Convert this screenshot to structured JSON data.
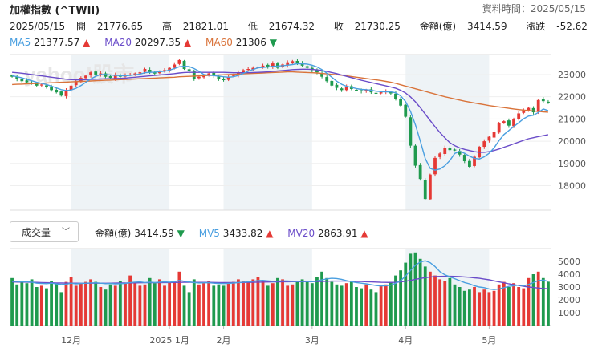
{
  "header": {
    "title": "加權指數 (^TWII)",
    "data_time_label": "資料時間：2025/05/15",
    "date": "2025/05/15",
    "open_label": "開",
    "open": "21776.65",
    "high_label": "高",
    "high": "21821.01",
    "low_label": "低",
    "low": "21674.32",
    "close_label": "收",
    "close": "21730.25",
    "amount_label": "金額(億)",
    "amount": "3414.59",
    "change_label": "漲跌",
    "change": "-52.62"
  },
  "ma": [
    {
      "label": "MA5",
      "value": "21377.57",
      "arrow": "▲",
      "color": "#4a9fe0",
      "dir": "up"
    },
    {
      "label": "MA20",
      "value": "20297.35",
      "arrow": "▲",
      "color": "#6a4cc9",
      "dir": "up"
    },
    {
      "label": "MA60",
      "value": "21306",
      "arrow": "▼",
      "color": "#d9733a",
      "dir": "down"
    }
  ],
  "volume_panel": {
    "select_label": "成交量",
    "amount_label": "金額(億)",
    "amount_value": "3414.59",
    "amount_arrow": "▼",
    "mv5_label": "MV5",
    "mv5_value": "3433.82",
    "mv5_arrow": "▲",
    "mv20_label": "MV20",
    "mv20_value": "2863.91",
    "mv20_arrow": "▲"
  },
  "watermark": "yahoo!股市",
  "colors": {
    "up": "#e53935",
    "down": "#1f9a4e",
    "ma5": "#4a9fe0",
    "ma20": "#6a4cc9",
    "ma60": "#d9733a",
    "band": "#eef3f6"
  },
  "chart_data": [
    {
      "type": "candlestick",
      "title": "加權指數 (^TWII)",
      "y_ticks": [
        18000,
        19000,
        20000,
        21000,
        22000,
        23000
      ],
      "ylim": [
        16900,
        23900
      ],
      "x_tick_labels": [
        {
          "label": "12月",
          "index": 12
        },
        {
          "label": "2025 1月",
          "index": 32
        },
        {
          "label": "2月",
          "index": 43
        },
        {
          "label": "3月",
          "index": 61
        },
        {
          "label": "4月",
          "index": 80
        },
        {
          "label": "5月",
          "index": 97
        }
      ],
      "close": [
        22900,
        22800,
        22700,
        22650,
        22600,
        22500,
        22550,
        22450,
        22300,
        22200,
        22050,
        22300,
        22500,
        22700,
        22850,
        22950,
        23100,
        23000,
        23050,
        22900,
        22850,
        23000,
        22900,
        22950,
        23000,
        23050,
        23100,
        23250,
        23100,
        23050,
        23150,
        23200,
        23300,
        23450,
        23650,
        23250,
        23150,
        22800,
        22900,
        22950,
        23050,
        22950,
        22800,
        22750,
        22900,
        23000,
        23100,
        23200,
        23250,
        23300,
        23350,
        23400,
        23350,
        23500,
        23300,
        23450,
        23550,
        23600,
        23500,
        23400,
        23300,
        23200,
        23100,
        22900,
        22700,
        22500,
        22400,
        22300,
        22450,
        22350,
        22300,
        22250,
        22300,
        22200,
        22150,
        22200,
        22250,
        22150,
        21900,
        21600,
        21100,
        19800,
        18900,
        18300,
        17400,
        18500,
        19250,
        19450,
        19700,
        19600,
        19600,
        19400,
        19100,
        18850,
        19300,
        19750,
        20000,
        20200,
        20400,
        20800,
        20900,
        20700,
        21000,
        21250,
        21400,
        21500,
        21300,
        21850,
        21800,
        21730
      ],
      "volume": [
        3700,
        3200,
        3400,
        3300,
        3600,
        3000,
        3100,
        2900,
        3500,
        3300,
        2600,
        3400,
        3800,
        3100,
        3300,
        3400,
        3600,
        3400,
        3000,
        2800,
        3200,
        3100,
        3500,
        3300,
        3900,
        3400,
        3100,
        3200,
        3700,
        3300,
        3600,
        3100,
        3400,
        3400,
        4200,
        3100,
        2600,
        3600,
        3200,
        3300,
        3500,
        3100,
        3200,
        3100,
        3300,
        3400,
        3600,
        3500,
        3400,
        3600,
        3800,
        3500,
        3100,
        3300,
        3700,
        3600,
        3100,
        3200,
        3500,
        3600,
        3400,
        3300,
        3800,
        4200,
        3700,
        3400,
        3200,
        3100,
        3300,
        3400,
        3000,
        2900,
        3200,
        2800,
        2600,
        3100,
        3200,
        3400,
        3900,
        4300,
        4900,
        5600,
        5700,
        5200,
        4600,
        4200,
        3900,
        3600,
        3500,
        3700,
        3200,
        3000,
        2700,
        2800,
        3000,
        2600,
        2800,
        2600,
        2700,
        3200,
        3400,
        3000,
        3300,
        3000,
        2900,
        3700,
        4000,
        4200,
        3700,
        3414
      ],
      "mv5": [
        3450,
        3430,
        3400,
        3420,
        3380,
        3300,
        3280,
        3260,
        3300,
        3250,
        3200,
        3220,
        3300,
        3250,
        3280,
        3300,
        3320,
        3330,
        3300,
        3260,
        3280,
        3250,
        3260,
        3280,
        3350,
        3380,
        3400,
        3350,
        3380,
        3350,
        3380,
        3400,
        3380,
        3420,
        3520,
        3450,
        3400,
        3350,
        3320,
        3330,
        3340,
        3300,
        3280,
        3270,
        3290,
        3310,
        3350,
        3380,
        3400,
        3450,
        3500,
        3520,
        3480,
        3450,
        3460,
        3480,
        3470,
        3450,
        3440,
        3450,
        3430,
        3420,
        3480,
        3560,
        3640,
        3680,
        3660,
        3600,
        3500,
        3420,
        3350,
        3300,
        3250,
        3180,
        3120,
        3080,
        3100,
        3150,
        3300,
        3500,
        3850,
        4300,
        4700,
        4950,
        5050,
        4900,
        4600,
        4200,
        3950,
        3800,
        3650,
        3500,
        3350,
        3250,
        3100,
        3000,
        2950,
        2850,
        2800,
        2850,
        2950,
        3050,
        3100,
        3150,
        3100,
        3200,
        3350,
        3500,
        3550,
        3434
      ],
      "mv20": [
        3400,
        3390,
        3385,
        3380,
        3370,
        3360,
        3350,
        3340,
        3330,
        3320,
        3310,
        3305,
        3300,
        3300,
        3295,
        3295,
        3300,
        3305,
        3300,
        3295,
        3300,
        3305,
        3310,
        3315,
        3320,
        3325,
        3330,
        3335,
        3340,
        3340,
        3345,
        3350,
        3350,
        3355,
        3365,
        3370,
        3370,
        3365,
        3360,
        3360,
        3360,
        3355,
        3350,
        3345,
        3345,
        3345,
        3350,
        3355,
        3360,
        3370,
        3380,
        3390,
        3395,
        3400,
        3405,
        3410,
        3415,
        3420,
        3420,
        3420,
        3420,
        3425,
        3430,
        3440,
        3450,
        3460,
        3465,
        3465,
        3460,
        3450,
        3440,
        3430,
        3415,
        3400,
        3385,
        3370,
        3360,
        3355,
        3370,
        3400,
        3450,
        3520,
        3600,
        3670,
        3730,
        3780,
        3810,
        3830,
        3840,
        3840,
        3830,
        3810,
        3790,
        3760,
        3720,
        3680,
        3620,
        3560,
        3480,
        3400,
        3330,
        3250,
        3180,
        3120,
        3060,
        3000,
        2960,
        2920,
        2890,
        2864
      ],
      "ma5": [
        22950,
        22900,
        22850,
        22780,
        22720,
        22650,
        22600,
        22550,
        22480,
        22400,
        22320,
        22280,
        22300,
        22380,
        22500,
        22650,
        22800,
        22920,
        23000,
        23000,
        22980,
        22960,
        22950,
        22940,
        22960,
        22990,
        23020,
        23080,
        23100,
        23110,
        23130,
        23150,
        23200,
        23270,
        23350,
        23370,
        23360,
        23270,
        23150,
        23000,
        22970,
        22950,
        22930,
        22900,
        22880,
        22900,
        22960,
        23050,
        23150,
        23230,
        23300,
        23320,
        23340,
        23370,
        23380,
        23400,
        23420,
        23450,
        23490,
        23480,
        23470,
        23420,
        23340,
        23220,
        23060,
        22880,
        22700,
        22560,
        22470,
        22420,
        22370,
        22330,
        22320,
        22290,
        22250,
        22230,
        22220,
        22220,
        22180,
        22040,
        21790,
        21340,
        20740,
        20010,
        19220,
        18780,
        18700,
        18750,
        18900,
        19130,
        19450,
        19540,
        19460,
        19330,
        19230,
        19200,
        19300,
        19460,
        19700,
        20030,
        20300,
        20480,
        20660,
        20830,
        21010,
        21130,
        21170,
        21290,
        21450,
        21378
      ],
      "ma20": [
        23100,
        23080,
        23060,
        23030,
        23000,
        22970,
        22940,
        22910,
        22880,
        22850,
        22820,
        22790,
        22770,
        22760,
        22760,
        22770,
        22780,
        22790,
        22800,
        22810,
        22810,
        22820,
        22830,
        22840,
        22860,
        22880,
        22900,
        22920,
        22940,
        22960,
        22980,
        23000,
        23020,
        23040,
        23070,
        23090,
        23100,
        23100,
        23100,
        23100,
        23100,
        23100,
        23100,
        23100,
        23090,
        23080,
        23080,
        23080,
        23080,
        23090,
        23100,
        23110,
        23120,
        23140,
        23160,
        23180,
        23200,
        23220,
        23230,
        23240,
        23240,
        23230,
        23210,
        23180,
        23140,
        23090,
        23040,
        22980,
        22920,
        22860,
        22800,
        22740,
        22690,
        22640,
        22590,
        22540,
        22490,
        22440,
        22380,
        22290,
        22170,
        21990,
        21770,
        21510,
        21220,
        20930,
        20650,
        20390,
        20150,
        19930,
        19800,
        19700,
        19630,
        19580,
        19530,
        19500,
        19500,
        19530,
        19580,
        19650,
        19730,
        19800,
        19880,
        19960,
        20040,
        20110,
        20160,
        20210,
        20250,
        20297
      ],
      "ma60": [
        22550,
        22560,
        22570,
        22580,
        22590,
        22600,
        22610,
        22620,
        22630,
        22640,
        22650,
        22660,
        22670,
        22680,
        22690,
        22700,
        22710,
        22720,
        22730,
        22740,
        22750,
        22760,
        22770,
        22780,
        22790,
        22800,
        22810,
        22820,
        22830,
        22840,
        22850,
        22860,
        22870,
        22880,
        22900,
        22910,
        22920,
        22930,
        22940,
        22950,
        22960,
        22970,
        22980,
        22990,
        23000,
        23010,
        23020,
        23030,
        23040,
        23050,
        23060,
        23070,
        23080,
        23090,
        23100,
        23110,
        23120,
        23120,
        23110,
        23100,
        23090,
        23080,
        23070,
        23050,
        23030,
        23010,
        22990,
        22970,
        22940,
        22910,
        22880,
        22850,
        22820,
        22790,
        22760,
        22730,
        22690,
        22650,
        22600,
        22540,
        22480,
        22420,
        22360,
        22300,
        22240,
        22180,
        22120,
        22060,
        22000,
        21950,
        21900,
        21850,
        21800,
        21760,
        21720,
        21680,
        21640,
        21600,
        21570,
        21540,
        21510,
        21480,
        21450,
        21420,
        21400,
        21380,
        21360,
        21340,
        21320,
        21306
      ]
    }
  ]
}
